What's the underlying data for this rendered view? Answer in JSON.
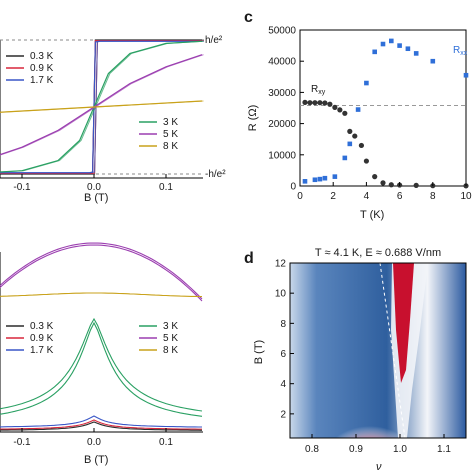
{
  "panels": {
    "c": "c",
    "d": "d"
  },
  "chart_data": [
    {
      "type": "line",
      "panel": "a (partial)",
      "xlabel": "B (T)",
      "x_ticks": [
        "-0.1",
        "0.0",
        "0.1"
      ],
      "xlim": [
        -0.15,
        0.15
      ],
      "annotations": [
        "h/e²",
        "-h/e²"
      ],
      "series": [
        {
          "name": "0.3 K",
          "color": "#2b2b2b",
          "x": [
            -0.15,
            -0.004,
            -0.002,
            0.002,
            0.004,
            0.15
          ],
          "y": [
            -1,
            -1,
            -1,
            1,
            1,
            1
          ]
        },
        {
          "name": "0.9 K",
          "color": "#d9263b",
          "x": [
            -0.15,
            -0.005,
            -0.002,
            0.002,
            0.005,
            0.15
          ],
          "y": [
            -0.99,
            -0.99,
            -0.99,
            0.99,
            0.99,
            0.99
          ]
        },
        {
          "name": "1.7 K",
          "color": "#3a57c7",
          "x": [
            -0.15,
            -0.006,
            -0.002,
            0.002,
            0.006,
            0.15
          ],
          "y": [
            -0.98,
            -0.98,
            -0.97,
            0.97,
            0.98,
            0.98
          ]
        },
        {
          "name": "3 K",
          "color": "#2aa063",
          "x": [
            -0.15,
            -0.1,
            -0.05,
            -0.02,
            0,
            0.02,
            0.05,
            0.1,
            0.15
          ],
          "y": [
            -0.98,
            -0.95,
            -0.8,
            -0.5,
            0,
            0.5,
            0.8,
            0.95,
            0.98
          ]
        },
        {
          "name": "5 K",
          "color": "#9b3fb0",
          "x": [
            -0.15,
            -0.1,
            -0.05,
            0,
            0.05,
            0.1,
            0.15
          ],
          "y": [
            -0.78,
            -0.6,
            -0.35,
            0,
            0.35,
            0.6,
            0.78
          ]
        },
        {
          "name": "8 K",
          "color": "#c9a21b",
          "x": [
            -0.15,
            0,
            0.15
          ],
          "y": [
            -0.09,
            0,
            0.09
          ]
        }
      ]
    },
    {
      "type": "scatter",
      "panel": "c",
      "xlabel": "T (K)",
      "ylabel": "R (Ω)",
      "xlim": [
        0,
        10
      ],
      "ylim": [
        0,
        50000
      ],
      "x_ticks": [
        "0",
        "2",
        "4",
        "6",
        "8",
        "10"
      ],
      "y_ticks": [
        "0",
        "10000",
        "20000",
        "30000",
        "40000",
        "50000"
      ],
      "reference_line": 25813,
      "series": [
        {
          "name": "Rxy",
          "color": "#333333",
          "x": [
            0.3,
            0.6,
            0.9,
            1.2,
            1.5,
            1.8,
            2.1,
            2.4,
            2.7,
            3.0,
            3.3,
            3.7,
            4.0,
            4.5,
            5.0,
            5.5,
            6.0,
            7.0,
            8.0,
            10.0
          ],
          "y": [
            26800,
            26700,
            26700,
            26700,
            26600,
            26200,
            25200,
            24400,
            23300,
            17500,
            16000,
            13000,
            8000,
            3000,
            1000,
            400,
            300,
            200,
            100,
            50
          ]
        },
        {
          "name": "Rxx",
          "color": "#2f6fd8",
          "x": [
            0.3,
            0.9,
            1.2,
            1.5,
            2.1,
            2.7,
            3.0,
            3.5,
            4.0,
            4.5,
            5.0,
            5.5,
            6.0,
            6.5,
            7.0,
            8.0,
            10.0
          ],
          "y": [
            1500,
            2000,
            2200,
            2500,
            3000,
            9000,
            13500,
            24500,
            33000,
            43000,
            45500,
            46500,
            45000,
            44000,
            42500,
            40000,
            35500
          ]
        }
      ],
      "legend": {
        "rxy": "R",
        "rxy_sub": "xy",
        "rxx": "R",
        "rxx_sub": "xx"
      }
    },
    {
      "type": "line",
      "panel": "b (partial)",
      "xlabel": "B (T)",
      "x_ticks": [
        "-0.1",
        "0.0",
        "0.1"
      ],
      "xlim": [
        -0.15,
        0.15
      ],
      "series": [
        {
          "name": "0.3 K",
          "color": "#2b2b2b"
        },
        {
          "name": "0.9 K",
          "color": "#d9263b"
        },
        {
          "name": "1.7 K",
          "color": "#3a57c7"
        },
        {
          "name": "3 K",
          "color": "#2aa063"
        },
        {
          "name": "5 K",
          "color": "#9b3fb0"
        },
        {
          "name": "8 K",
          "color": "#c9a21b"
        }
      ]
    },
    {
      "type": "heatmap",
      "panel": "d",
      "title": "T ≈ 4.1 K, E ≈ 0.688 V/nm",
      "xlabel": "ν",
      "ylabel": "B (T)",
      "xlim": [
        0.75,
        1.15
      ],
      "ylim": [
        0.4,
        12
      ],
      "x_ticks": [
        "0.8",
        "0.9",
        "1.0",
        "1.1"
      ],
      "y_ticks": [
        "2",
        "4",
        "6",
        "8",
        "10",
        "12"
      ],
      "colors": {
        "low": "#2b5aa0",
        "mid": "#ffffff",
        "high": "#d0112e"
      }
    }
  ]
}
